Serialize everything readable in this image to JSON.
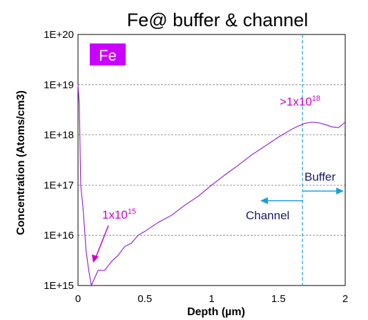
{
  "chart_data": {
    "type": "line",
    "title": "Fe@ buffer & channel",
    "xlabel": "Depth (µm)",
    "ylabel": "Concentration (Atoms/cm3)",
    "xlim": [
      0,
      2
    ],
    "ylim": [
      1000000000000000.0,
      1e+20
    ],
    "yscale": "log",
    "grid": "horizontal dashed",
    "x_ticks": [
      "0",
      "0.5",
      "1",
      "1.5",
      "2"
    ],
    "x_tick_values": [
      0,
      0.5,
      1,
      1.5,
      2
    ],
    "y_ticks": [
      "1E+15",
      "1E+16",
      "1E+17",
      "1E+18",
      "1E+19",
      "1E+20"
    ],
    "y_tick_values": [
      1000000000000000.0,
      1e+16,
      1e+17,
      1e+18,
      1e+19,
      1e+20
    ],
    "series": [
      {
        "color": "#8a16d4",
        "x": [
          0.0,
          0.01,
          0.02,
          0.04,
          0.06,
          0.08,
          0.1,
          0.15,
          0.2,
          0.25,
          0.3,
          0.35,
          0.4,
          0.45,
          0.5,
          0.6,
          0.7,
          0.8,
          0.9,
          1.0,
          1.1,
          1.2,
          1.3,
          1.4,
          1.5,
          1.6,
          1.65,
          1.7,
          1.75,
          1.8,
          1.85,
          1.9,
          1.95,
          2.0
        ],
        "y": [
          1e+19,
          4e+18,
          1e+17,
          3e+16,
          5000000000000000.0,
          2000000000000000.0,
          1000000000000000.0,
          2000000000000000.0,
          2000000000000000.0,
          3000000000000000.0,
          4000000000000000.0,
          6000000000000000.0,
          7000000000000000.0,
          1e+16,
          1.2e+16,
          1.8e+16,
          2.5e+16,
          4e+16,
          6e+16,
          1e+17,
          1.6e+17,
          2.5e+17,
          4e+17,
          6e+17,
          9e+17,
          1.3e+18,
          1.5e+18,
          1.7e+18,
          1.8e+18,
          1.75e+18,
          1.6e+18,
          1.45e+18,
          1.4e+18,
          1.8e+18
        ]
      }
    ],
    "annotations": {
      "element_badge": "Fe",
      "peak_base": ">1x10",
      "peak_exp": "18",
      "floor_base": "1x10",
      "floor_exp": "15",
      "buffer_label": "Buffer",
      "channel_label": "Channel",
      "boundary_depth": 1.68,
      "magenta": "#cc00cc",
      "navy": "#1a1a66",
      "arrow_color": "#1aa0d8",
      "badge_color": "#cc00ff"
    }
  }
}
